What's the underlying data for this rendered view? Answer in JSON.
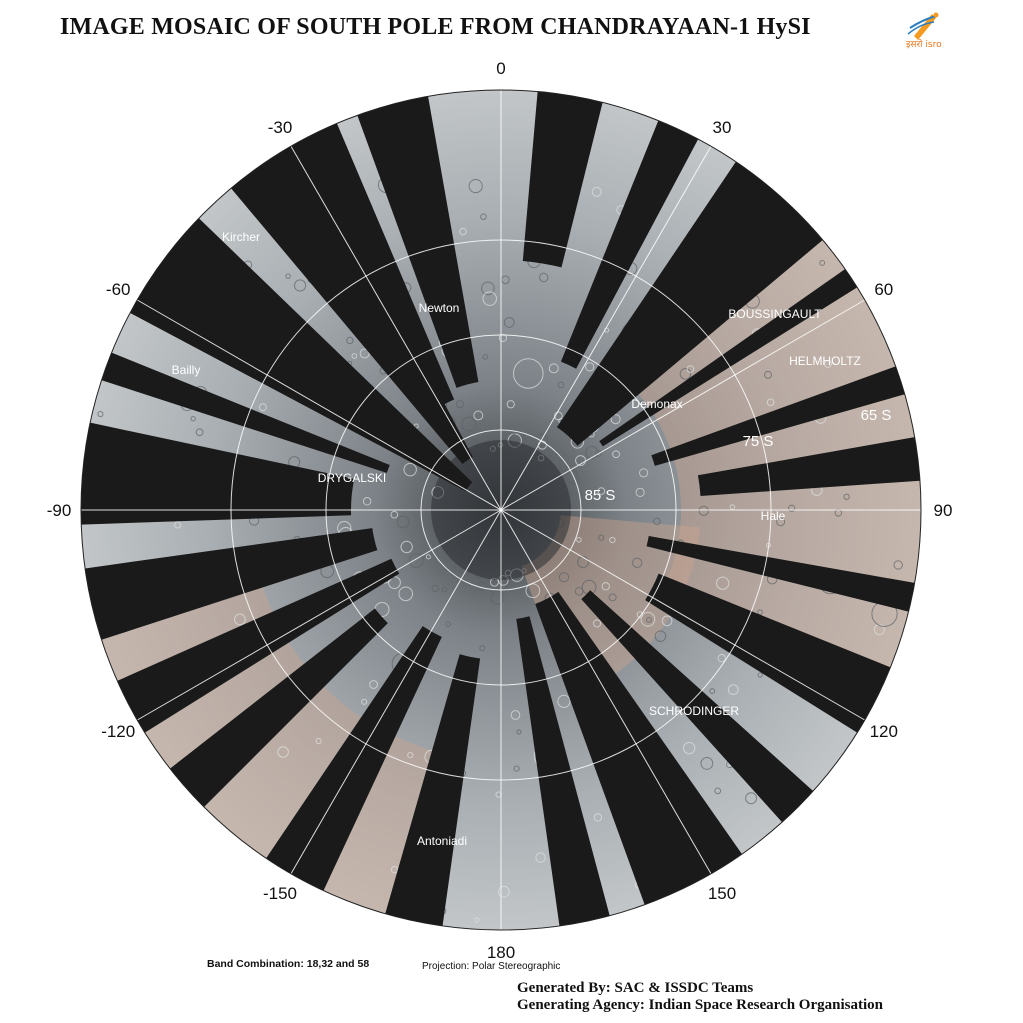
{
  "header": {
    "title": "IMAGE MOSAIC OF SOUTH POLE FROM CHANDRAYAAN-1 HySI",
    "logo_text": "इसरो isro"
  },
  "map": {
    "longitude_labels": [
      "0",
      "30",
      "60",
      "90",
      "120",
      "150",
      "180",
      "-150",
      "-120",
      "-90",
      "-60",
      "-30"
    ],
    "latitude_labels": [
      "85 S",
      "75 S",
      "65 S"
    ],
    "features": [
      {
        "name": "Kircher"
      },
      {
        "name": "Newton"
      },
      {
        "name": "BOUSSINGAULT"
      },
      {
        "name": "HELMHOLTZ"
      },
      {
        "name": "Bailly"
      },
      {
        "name": "Demonax"
      },
      {
        "name": "DRYGALSKI"
      },
      {
        "name": "Hale"
      },
      {
        "name": "SCHRODINGER"
      },
      {
        "name": "Antoniadi"
      }
    ],
    "colors": {
      "background": "#1a1a1a",
      "terrain": "#9aa2a6",
      "tint": "#c9a48f",
      "grid": "#ffffff"
    }
  },
  "footer": {
    "band_combination": "Band Combination: 18,32 and 58",
    "projection": "Projection: Polar Stereographic",
    "generated_by": "Generated By: SAC & ISSDC Teams",
    "generating_agency": "Generating Agency: Indian Space Research Organisation"
  }
}
